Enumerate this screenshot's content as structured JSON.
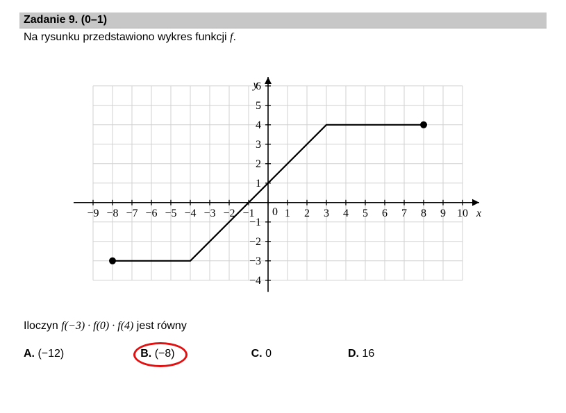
{
  "header": {
    "title": "Zadanie 9. (0–1)"
  },
  "intro": {
    "text_before": "Na rysunku przedstawiono wykres funkcji ",
    "function_symbol": "f",
    "text_after": "."
  },
  "chart": {
    "type": "line",
    "xlim": [
      -10,
      11
    ],
    "ylim": [
      -4.6,
      6.6
    ],
    "grid_step": 1,
    "grid_color": "#d0d0d0",
    "axis_color": "#000000",
    "background_color": "#ffffff",
    "xlabel": "x",
    "ylabel": "y",
    "x_ticks": [
      -9,
      -8,
      -7,
      -6,
      -5,
      -4,
      -3,
      -2,
      -1,
      0,
      1,
      2,
      3,
      4,
      5,
      6,
      7,
      8,
      9,
      10
    ],
    "y_ticks": [
      -4,
      -3,
      -2,
      -1,
      1,
      2,
      3,
      4,
      5,
      6
    ],
    "function": {
      "line_color": "#000000",
      "line_width": 2.2,
      "points": [
        {
          "x": -8,
          "y": -3,
          "endpoint": true
        },
        {
          "x": -4,
          "y": -3
        },
        {
          "x": 3,
          "y": 4
        },
        {
          "x": 8,
          "y": 4,
          "endpoint": true
        }
      ],
      "endpoint_radius": 5,
      "endpoint_fill": "#000000"
    },
    "label_fontsize": 16
  },
  "question": {
    "prefix": "Iloczyn ",
    "math": "f(−3) · f(0) · f(4)",
    "suffix": " jest równy"
  },
  "options": [
    {
      "label": "A.",
      "value": "(−12)",
      "circled": false
    },
    {
      "label": "B.",
      "value": "(−8)",
      "circled": true
    },
    {
      "label": "C.",
      "value": "0",
      "circled": false
    },
    {
      "label": "D.",
      "value": "16",
      "circled": false
    }
  ],
  "circle_style": {
    "color": "#e11111",
    "width": 78,
    "height": 36,
    "left_offset": -10,
    "top_offset": -8,
    "border_width": 3
  }
}
